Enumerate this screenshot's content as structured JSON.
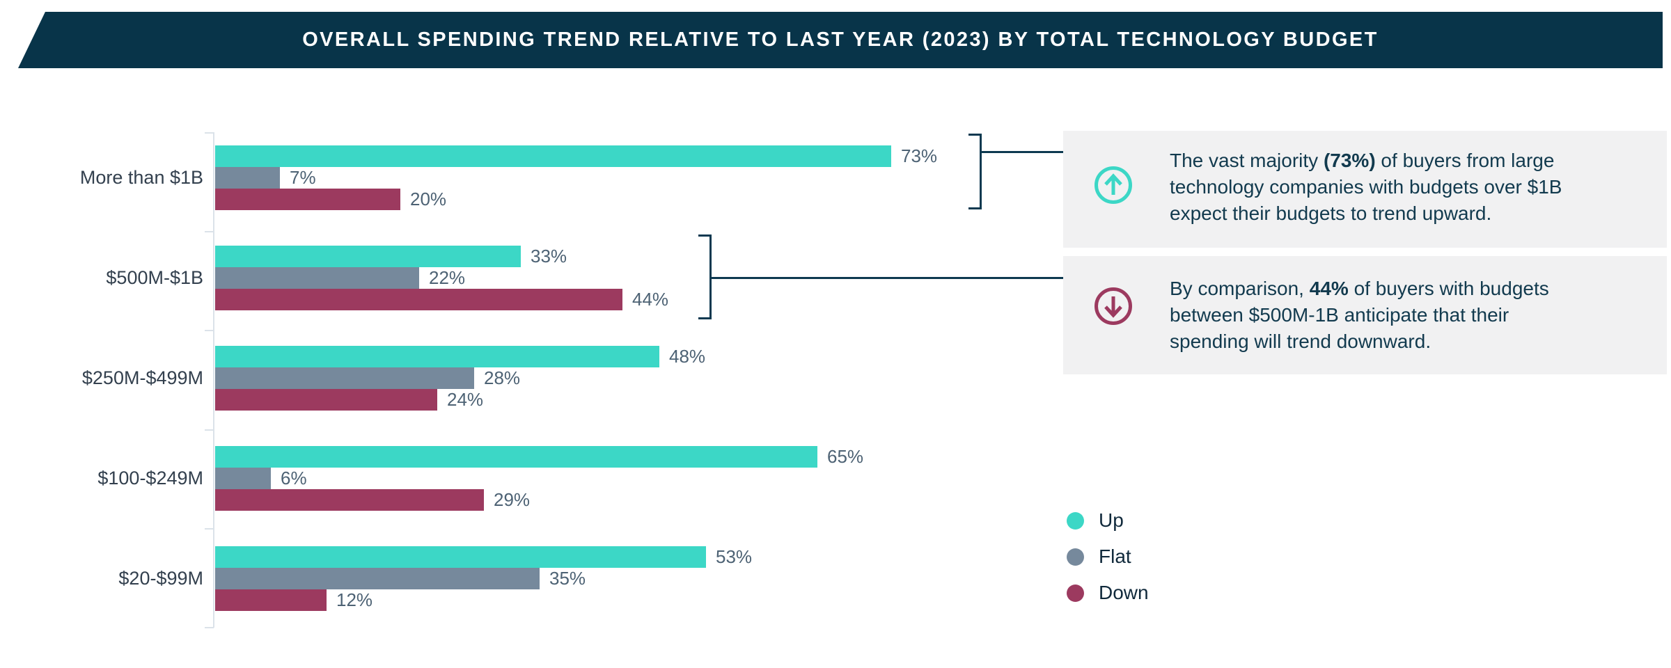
{
  "chart_data": {
    "type": "bar",
    "orientation": "horizontal",
    "title": "OVERALL SPENDING TREND RELATIVE TO LAST YEAR (2023) BY TOTAL TECHNOLOGY BUDGET",
    "categories": [
      "More than $1B",
      "$500M-$1B",
      "$250M-$499M",
      "$100-$249M",
      "$20-$99M"
    ],
    "series": [
      {
        "name": "Up",
        "color": "#3cd7c6",
        "values": [
          73,
          33,
          48,
          65,
          53
        ]
      },
      {
        "name": "Flat",
        "color": "#76899c",
        "values": [
          7,
          22,
          28,
          6,
          35
        ]
      },
      {
        "name": "Down",
        "color": "#9c3a5f",
        "values": [
          20,
          44,
          24,
          29,
          12
        ]
      }
    ],
    "value_suffix": "%",
    "xlim": [
      0,
      100
    ],
    "grid": false,
    "legend_position": "bottom-right",
    "legend": [
      "Up",
      "Flat",
      "Down"
    ]
  },
  "annotations": [
    {
      "icon": "circle-arrow-up-icon",
      "icon_color": "#3cd7c6",
      "linked_category": "More than $1B",
      "lines": [
        [
          {
            "t": "The vast majority "
          },
          {
            "t": "(73%)",
            "b": true
          },
          {
            "t": " of buyers from large"
          }
        ],
        [
          {
            "t": "technology companies with budgets over $1B"
          }
        ],
        [
          {
            "t": "expect their budgets to trend upward."
          }
        ]
      ]
    },
    {
      "icon": "circle-arrow-down-icon",
      "icon_color": "#9c3a5f",
      "linked_category": "$500M-$1B",
      "lines": [
        [
          {
            "t": "By comparison, "
          },
          {
            "t": "44%",
            "b": true
          },
          {
            "t": " of buyers with budgets"
          }
        ],
        [
          {
            "t": "between $500M-1B anticipate that their"
          }
        ],
        [
          {
            "t": "spending will trend downward."
          }
        ]
      ]
    }
  ],
  "colors": {
    "banner_bg": "#083449",
    "callout_bg": "#f1f1f2",
    "axis": "#dbe2e9",
    "bracket": "#0d3950",
    "value_label": "#4d6274",
    "category_label": "#33404e",
    "annotation_text": "#123a4e"
  }
}
